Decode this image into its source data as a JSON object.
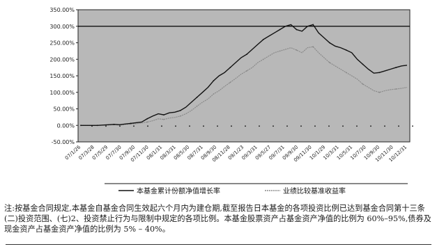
{
  "chart_data": {
    "type": "line",
    "title": "",
    "ylabel": "",
    "xlabel": "",
    "ylim": [
      -50,
      350
    ],
    "y_ticks": [
      "350.00%",
      "300.00%",
      "250.00%",
      "200.00%",
      "150.00%",
      "100.00%",
      "50.00%",
      "0.00%",
      "-50.00%"
    ],
    "y_tick_values": [
      350,
      300,
      250,
      200,
      150,
      100,
      50,
      0,
      -50
    ],
    "reference_line_value": 300,
    "grid": false,
    "legend_placement": "bottom",
    "x_points": 60,
    "series": [
      {
        "name": "本基金累计份额净值增长率",
        "color": "#111111",
        "values": [
          0,
          0,
          0,
          0,
          1,
          2,
          3,
          2,
          4,
          6,
          8,
          10,
          20,
          28,
          35,
          32,
          38,
          40,
          45,
          55,
          70,
          85,
          100,
          115,
          135,
          150,
          160,
          175,
          190,
          205,
          215,
          230,
          245,
          260,
          270,
          280,
          290,
          300,
          305,
          290,
          285,
          300,
          305,
          280,
          265,
          250,
          240,
          235,
          228,
          220,
          200,
          185,
          170,
          158,
          160,
          165,
          170,
          175,
          180,
          182
        ]
      },
      {
        "name": "业绩比较基准收益率",
        "color": "#8a8a8a",
        "values": [
          0,
          0,
          0,
          0,
          1,
          1,
          2,
          1,
          3,
          4,
          5,
          7,
          10,
          14,
          20,
          18,
          22,
          24,
          28,
          35,
          45,
          58,
          70,
          80,
          95,
          105,
          118,
          130,
          142,
          155,
          165,
          175,
          190,
          200,
          210,
          220,
          225,
          230,
          235,
          228,
          220,
          235,
          238,
          220,
          205,
          190,
          180,
          170,
          160,
          150,
          140,
          125,
          115,
          105,
          100,
          105,
          108,
          110,
          112,
          115
        ]
      }
    ]
  },
  "x_tick_labels": [
    "07/1/26",
    "07/3/28",
    "07/5/29",
    "07/7/30",
    "07/9/30",
    "07/11/30",
    "08/1/31",
    "08/3/31",
    "08/5/30",
    "08/7/31",
    "08/9/30",
    "08/11/28",
    "09/1/23",
    "09/3/31",
    "09/5/27",
    "09/7/31",
    "09/9/30",
    "09/11/30",
    "10/1/29",
    "10/3/31",
    "10/5/31",
    "10/7/30",
    "10/9/30",
    "10/11/30",
    "10/12/31"
  ],
  "note_text": "注:按基金合同规定,本基金自基金合同生效起六个月内为建仓期,截至报告日本基金的各项投资比例已达到基金合同第十三条(二)投资范围、(七)2、投资禁止行为与限制中规定的各项比例。本基金股票资产占基金资产净值的比例为 60%–95%,债券及现金资产占基金资产净值的比例为 5% – 40%。",
  "colors": {
    "plot_bg": "#b8b8b8",
    "axis": "#222222"
  }
}
